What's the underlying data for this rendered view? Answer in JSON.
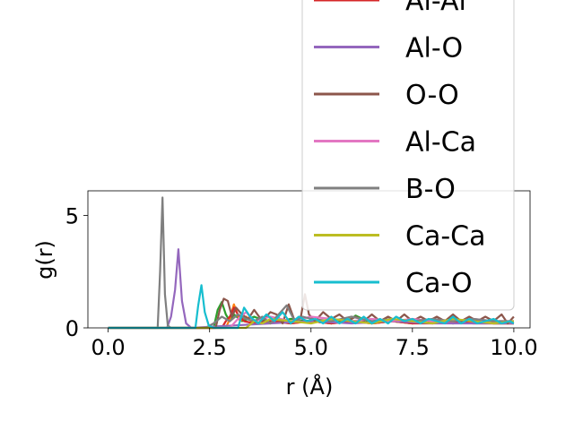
{
  "chart_data": {
    "type": "line",
    "title": "",
    "xlabel": "r (Å)",
    "ylabel": "g(r)",
    "xlim": [
      -0.5,
      10.4
    ],
    "ylim": [
      0,
      6.1
    ],
    "xticks": [
      "0.0",
      "2.5",
      "5.0",
      "7.5",
      "10.0"
    ],
    "xtick_values": [
      0,
      2.5,
      5,
      7.5,
      10
    ],
    "yticks": [
      "0",
      "5"
    ],
    "ytick_values": [
      0,
      5
    ],
    "grid": false,
    "legend_position": "upper-right",
    "series": [
      {
        "name": "Al-Al",
        "color": "#d62728",
        "x": [
          0,
          2.8,
          2.9,
          3.0,
          3.1,
          3.2,
          3.35,
          3.6,
          4.0,
          4.5,
          5.0,
          5.5,
          6.0,
          6.5,
          7.0,
          7.5,
          8.0,
          8.5,
          9.0,
          9.5,
          10.0
        ],
        "y": [
          0,
          0,
          0.3,
          0.5,
          0.9,
          0.6,
          0.3,
          0.2,
          0.3,
          0.2,
          0.3,
          0.2,
          0.3,
          0.2,
          0.3,
          0.2,
          0.2,
          0.3,
          0.2,
          0.2,
          0.2
        ]
      },
      {
        "name": "Al-O",
        "color": "#9467bd",
        "x": [
          0,
          1.45,
          1.55,
          1.65,
          1.73,
          1.82,
          1.92,
          2.05,
          4.0,
          5.0,
          6.0,
          7.0,
          8.0,
          9.0,
          10.0
        ],
        "y": [
          0,
          0,
          0.5,
          1.7,
          3.5,
          1.2,
          0.2,
          0,
          0.2,
          0.3,
          0.2,
          0.3,
          0.2,
          0.2,
          0.2
        ]
      },
      {
        "name": "O-O",
        "color": "#8c564b",
        "x": [
          0,
          2.65,
          2.75,
          2.85,
          2.95,
          3.05,
          3.15,
          3.3,
          3.45,
          3.6,
          3.8,
          4.0,
          4.15,
          4.3,
          4.45,
          4.6,
          4.75,
          4.85,
          4.95,
          5.1,
          5.3,
          5.5,
          5.7,
          5.9,
          6.1,
          6.3,
          6.5,
          6.7,
          6.9,
          7.1,
          7.3,
          7.5,
          7.7,
          7.9,
          8.1,
          8.3,
          8.5,
          8.7,
          8.9,
          9.1,
          9.3,
          9.5,
          9.7,
          9.85,
          10.0
        ],
        "y": [
          0,
          0,
          0.8,
          1.3,
          1.2,
          0.5,
          0.9,
          0.6,
          0.4,
          0.8,
          0.3,
          0.7,
          0.6,
          0.2,
          1.05,
          0.3,
          0.5,
          1.5,
          0.6,
          0.3,
          0.7,
          0.4,
          0.6,
          0.3,
          0.5,
          0.3,
          0.6,
          0.3,
          0.5,
          0.3,
          0.6,
          0.3,
          0.5,
          0.3,
          0.5,
          0.3,
          0.6,
          0.3,
          0.5,
          0.3,
          0.5,
          0.3,
          0.6,
          0.2,
          0.5
        ]
      },
      {
        "name": "Al-Ca",
        "color": "#e377c2",
        "x": [
          0,
          3.0,
          3.2,
          3.4,
          3.6,
          4.0,
          4.5,
          5.0,
          5.5,
          6.0,
          6.5,
          7.0,
          7.5,
          8.0,
          8.5,
          9.0,
          9.5,
          10.0
        ],
        "y": [
          0,
          0,
          0.4,
          0.7,
          0.3,
          0.5,
          0.3,
          0.5,
          0.4,
          0.3,
          0.4,
          0.3,
          0.4,
          0.3,
          0.3,
          0.4,
          0.3,
          0.3
        ]
      },
      {
        "name": "B-O",
        "color": "#7f7f7f",
        "x": [
          0,
          1.22,
          1.28,
          1.34,
          1.4,
          1.47,
          1.55,
          2.4,
          2.6,
          2.8,
          3.0,
          3.2,
          3.4,
          3.6,
          3.8,
          4.0,
          4.2,
          4.4,
          4.6,
          4.8,
          5.0,
          5.5,
          6.0,
          6.5,
          7.0,
          7.5,
          8.0,
          8.5,
          9.0,
          9.5,
          10.0
        ],
        "y": [
          0,
          0,
          2.5,
          5.8,
          1.5,
          0.1,
          0,
          0,
          0.2,
          0.5,
          0.3,
          0.6,
          0.4,
          0.3,
          0.5,
          0.2,
          0.6,
          1.0,
          0.3,
          0.5,
          0.4,
          0.3,
          0.5,
          0.3,
          0.4,
          0.3,
          0.4,
          0.3,
          0.4,
          0.3,
          0.3
        ]
      },
      {
        "name": "Ca-Ca",
        "color": "#bcbd22",
        "x": [
          0,
          3.4,
          3.6,
          3.8,
          4.0,
          4.5,
          5.0,
          5.5,
          6.0,
          6.5,
          7.0,
          7.5,
          8.0,
          8.5,
          9.0,
          9.5,
          10.0
        ],
        "y": [
          0,
          0,
          0.3,
          0.2,
          0.4,
          0.3,
          0.2,
          0.4,
          0.3,
          0.2,
          0.4,
          0.3,
          0.2,
          0.4,
          0.3,
          0.2,
          0.3
        ]
      },
      {
        "name": "Ca-O",
        "color": "#17becf",
        "x": [
          0,
          2.15,
          2.22,
          2.3,
          2.38,
          2.48,
          2.6,
          3.2,
          3.35,
          3.5,
          3.7,
          3.9,
          4.1,
          4.3,
          4.5,
          4.7,
          4.9,
          5.1,
          5.3,
          5.5,
          5.7,
          5.9,
          6.1,
          6.3,
          6.5,
          6.7,
          6.9,
          7.1,
          7.3,
          7.5,
          7.7,
          7.9,
          8.1,
          8.3,
          8.5,
          8.7,
          8.9,
          9.1,
          9.3,
          9.5,
          9.7,
          9.9,
          10.0
        ],
        "y": [
          0,
          0,
          1.0,
          1.9,
          0.7,
          0.1,
          0,
          0,
          0.9,
          0.5,
          0.2,
          0.6,
          0.3,
          0.7,
          0.2,
          0.5,
          0.3,
          0.4,
          0.2,
          0.5,
          0.2,
          0.4,
          0.2,
          0.5,
          0.2,
          0.4,
          0.2,
          0.5,
          0.3,
          0.4,
          0.2,
          0.4,
          0.3,
          0.2,
          0.5,
          0.2,
          0.4,
          0.2,
          0.3,
          0.4,
          0.2,
          0.3,
          0.2
        ]
      }
    ],
    "extra_series": [
      {
        "color": "#2ca02c",
        "x": [
          0,
          2.6,
          2.7,
          2.8,
          2.9,
          3.0,
          3.1,
          3.3,
          3.6,
          4.0,
          4.5,
          5.0,
          5.5,
          6.0,
          6.1,
          6.5,
          7.0,
          7.5,
          8.0,
          8.5,
          9.0,
          9.5,
          10.0
        ],
        "y": [
          0,
          0,
          0.8,
          1.15,
          0.6,
          0.3,
          0.6,
          0.3,
          0.5,
          0.2,
          0.4,
          0.3,
          0.2,
          0.4,
          0.55,
          0.2,
          0.3,
          0.2,
          0.3,
          0.2,
          0.3,
          0.2,
          0.2
        ]
      },
      {
        "color": "#ff7f0e",
        "x": [
          0,
          2.9,
          3.0,
          3.1,
          3.15,
          3.25,
          3.4,
          3.6,
          4.0,
          4.5,
          5.0,
          5.5,
          6.0,
          6.5,
          7.0,
          7.5,
          8.0,
          8.5,
          9.0,
          9.5,
          10.0
        ],
        "y": [
          0,
          0,
          0.4,
          1.05,
          0.8,
          0.3,
          0.5,
          0.2,
          0.3,
          0.2,
          0.3,
          0.2,
          0.3,
          0.2,
          0.3,
          0.2,
          0.3,
          0.2,
          0.3,
          0.2,
          0.2
        ]
      }
    ]
  }
}
